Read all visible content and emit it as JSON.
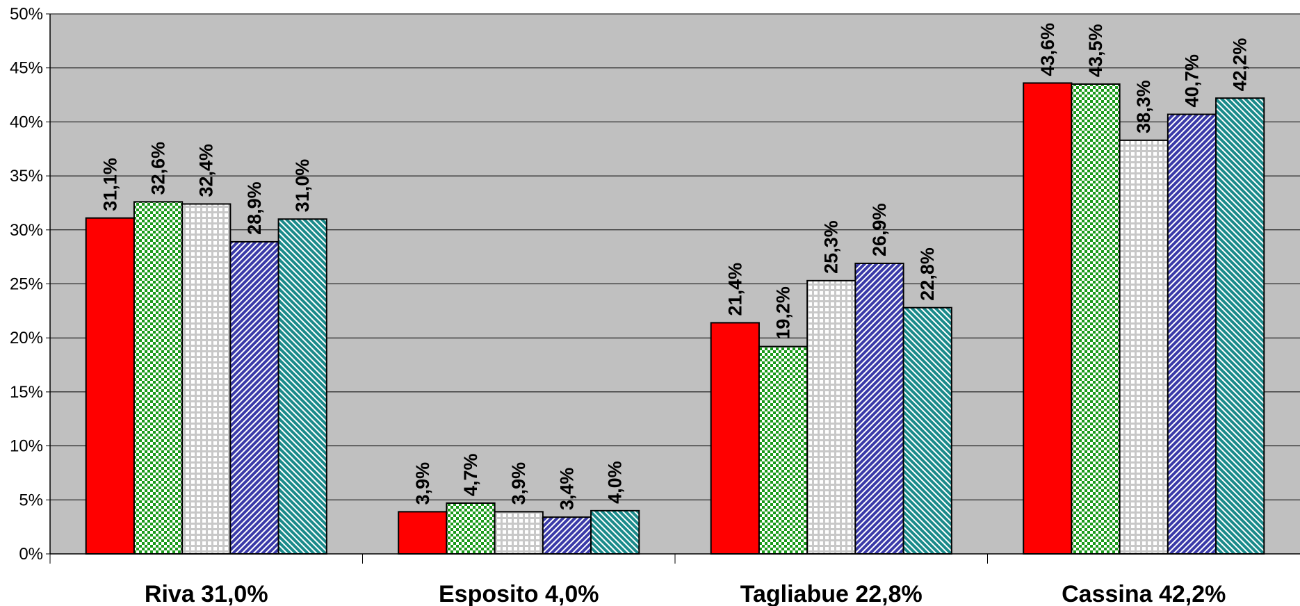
{
  "chart_data": {
    "type": "bar",
    "categories": [
      "Riva 31,0%",
      "Esposito 4,0%",
      "Tagliabue 22,8%",
      "Cassina 42,2%"
    ],
    "series": [
      {
        "values": [
          31.1,
          3.9,
          21.4,
          43.6
        ],
        "labels": [
          "31,1%",
          "3,9%",
          "21,4%",
          "43,6%"
        ],
        "color": "#ff0000",
        "pattern": "solid"
      },
      {
        "values": [
          32.6,
          4.7,
          19.2,
          43.5
        ],
        "labels": [
          "32,6%",
          "4,7%",
          "19,2%",
          "43,5%"
        ],
        "color": "#1a9a1a",
        "pattern": "checker"
      },
      {
        "values": [
          32.4,
          3.9,
          25.3,
          38.3
        ],
        "labels": [
          "32,4%",
          "3,9%",
          "25,3%",
          "38,3%"
        ],
        "color": "#c8c8c8",
        "pattern": "grid"
      },
      {
        "values": [
          28.9,
          3.4,
          26.9,
          40.7
        ],
        "labels": [
          "28,9%",
          "3,4%",
          "26,9%",
          "40,7%"
        ],
        "color": "#3a3aa8",
        "pattern": "diagonal"
      },
      {
        "values": [
          31.0,
          4.0,
          22.8,
          42.2
        ],
        "labels": [
          "31,0%",
          "4,0%",
          "22,8%",
          "42,2%"
        ],
        "color": "#1a8a8a",
        "pattern": "diagonal"
      }
    ],
    "yticks": [
      "0%",
      "5%",
      "10%",
      "15%",
      "20%",
      "25%",
      "30%",
      "35%",
      "40%",
      "45%",
      "50%"
    ],
    "ylim": [
      0,
      50
    ],
    "grid": true,
    "plot_background": "#c0c0c0"
  }
}
